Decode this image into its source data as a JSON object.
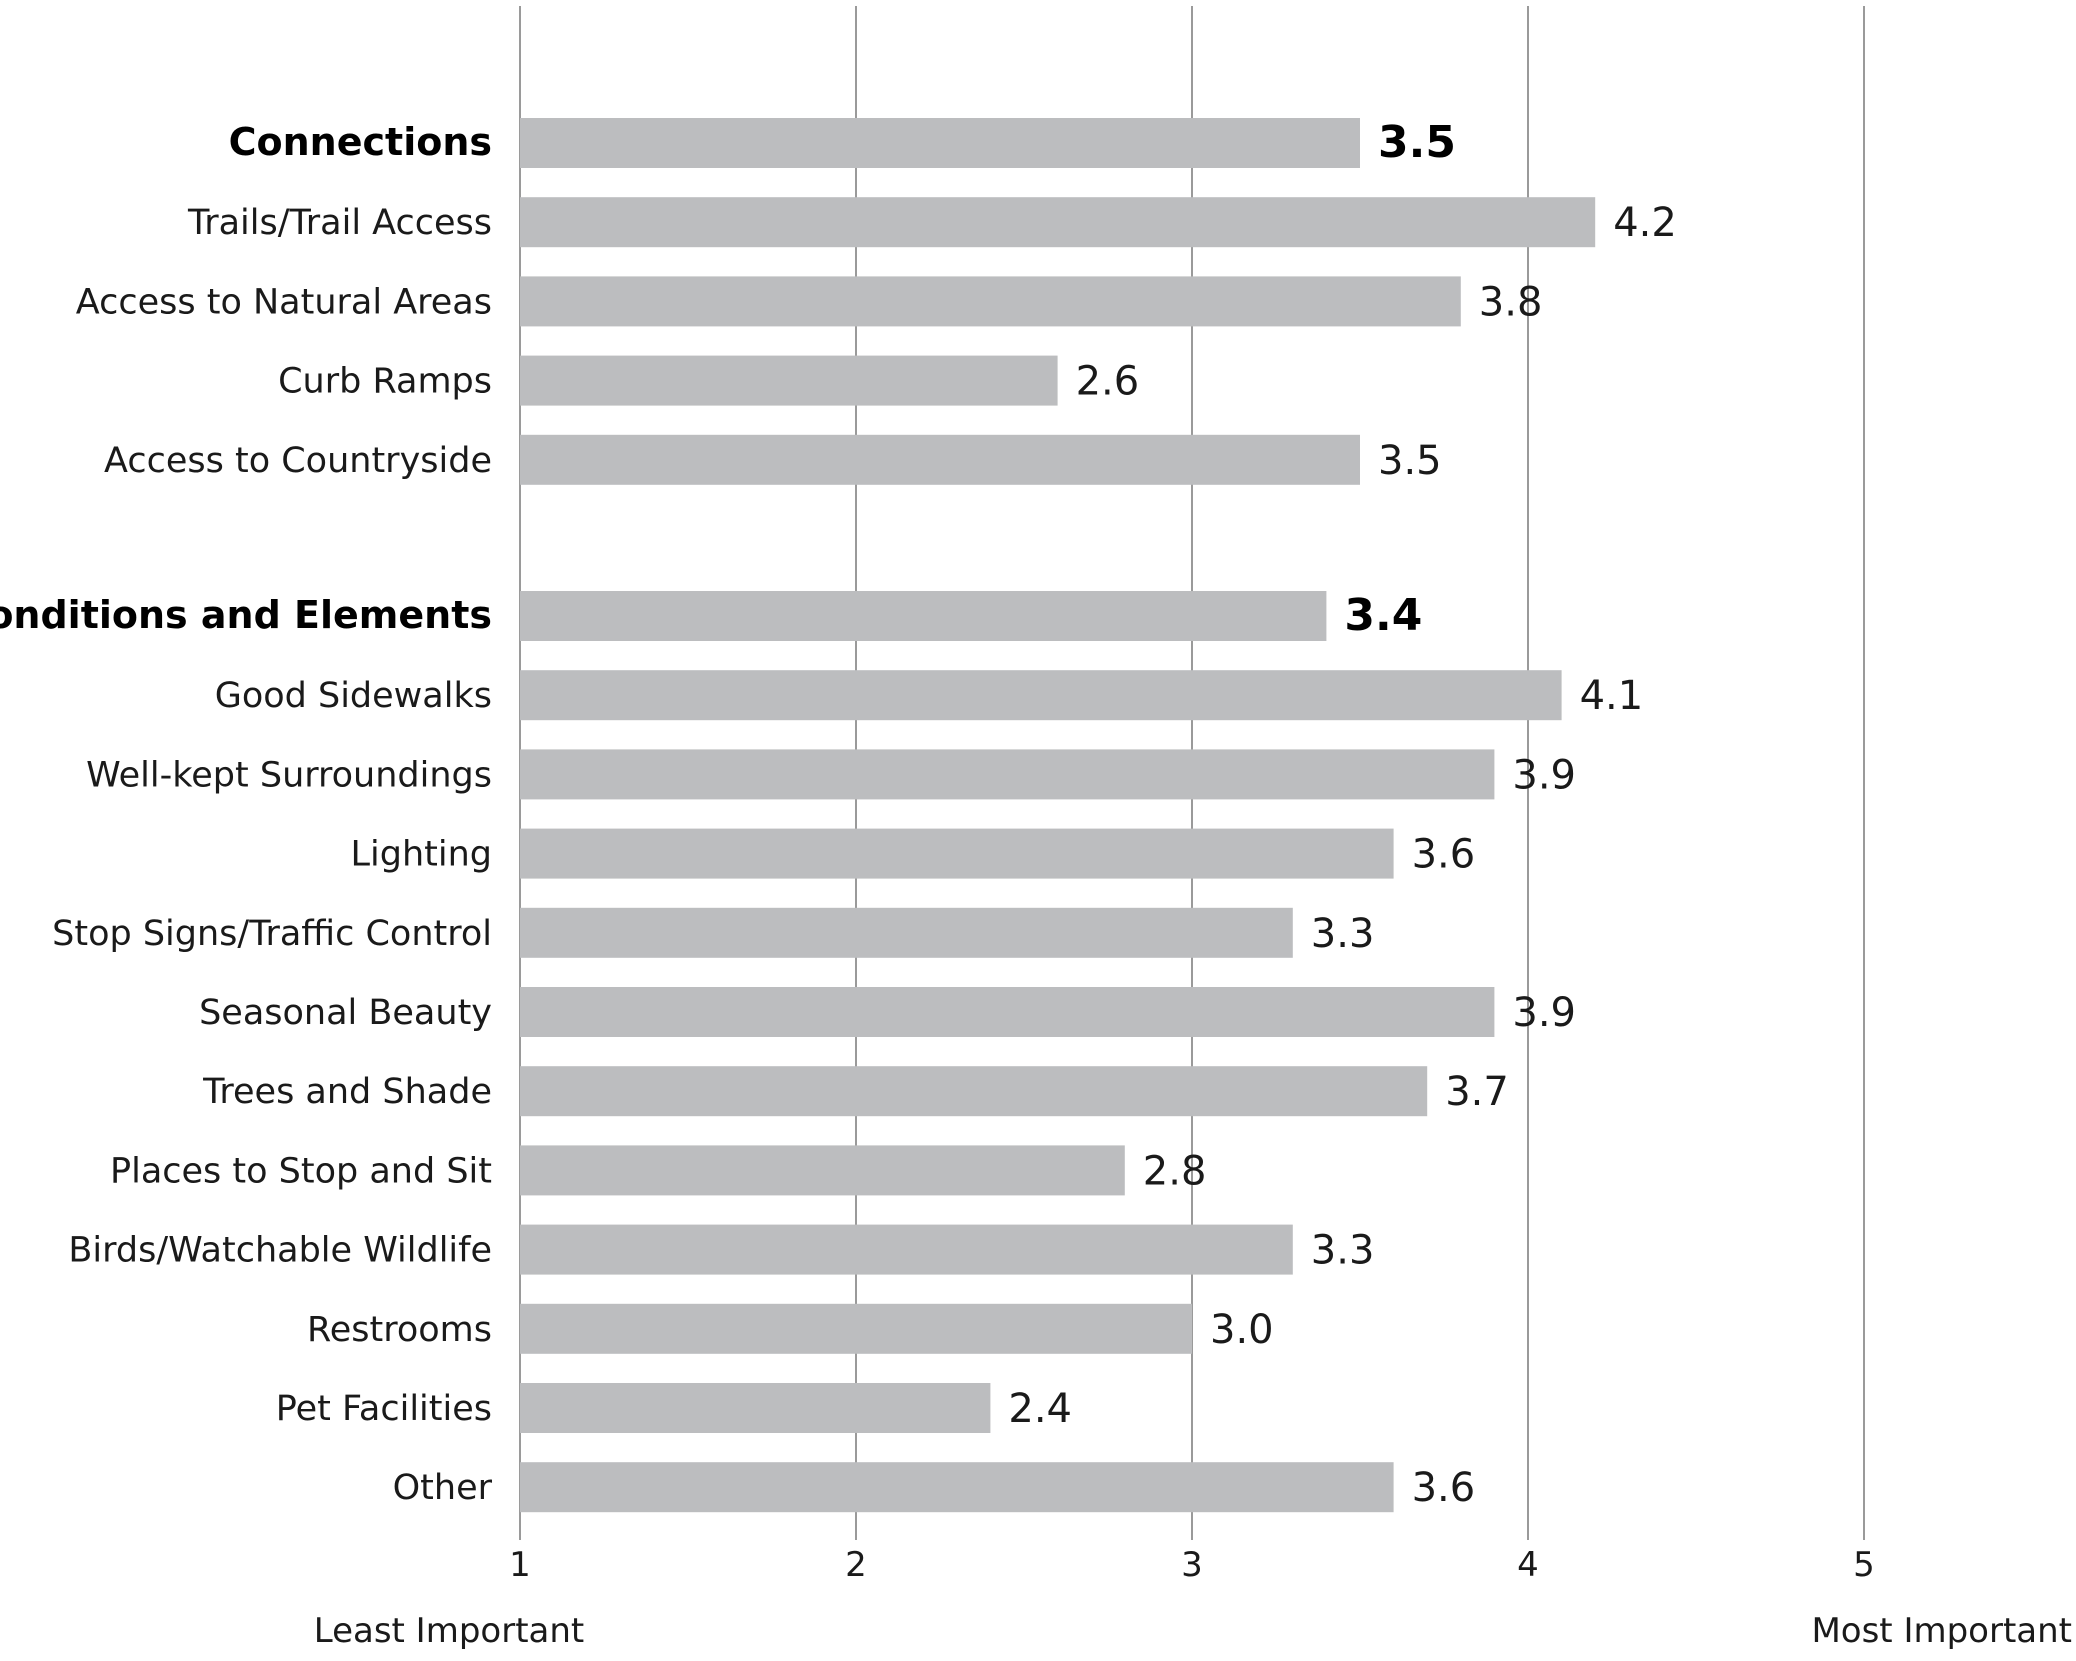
{
  "chart_data": {
    "type": "bar",
    "orientation": "horizontal",
    "categories": [
      "Connections",
      "Trails/Trail Access",
      "Access to Natural Areas",
      "Curb Ramps",
      "Access to Countryside",
      "Conditions and Elements",
      "Good Sidewalks",
      "Well-kept Surroundings",
      "Lighting",
      "Stop Signs/Traffic Control",
      "Seasonal Beauty",
      "Trees and Shade",
      "Places to Stop and Sit",
      "Birds/Watchable Wildlife",
      "Restrooms",
      "Pet Facilities",
      "Other"
    ],
    "values": [
      3.5,
      4.2,
      3.8,
      2.6,
      3.5,
      3.4,
      4.1,
      3.9,
      3.6,
      3.3,
      3.9,
      3.7,
      2.8,
      3.3,
      3.0,
      2.4,
      3.6
    ],
    "value_labels": [
      "3.5",
      "4.2",
      "3.8",
      "2.6",
      "3.5",
      "3.4",
      "4.1",
      "3.9",
      "3.6",
      "3.3",
      "3.9",
      "3.7",
      "2.8",
      "3.3",
      "3.0",
      "2.4",
      "3.6"
    ],
    "group_headers": [
      "Connections",
      "Conditions and Elements"
    ],
    "xlim": [
      1,
      5
    ],
    "x_ticks": [
      "1",
      "2",
      "3",
      "4",
      "5"
    ],
    "x_min_label": "Least Important",
    "x_max_label": "Most Important",
    "grid": true,
    "bar_color": "#bcbdbf",
    "gridline_color": "#9a9a9a"
  }
}
